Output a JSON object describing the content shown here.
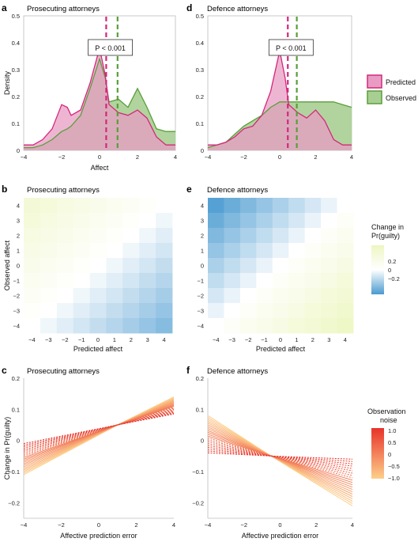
{
  "colors": {
    "predicted": "#d4277b",
    "predicted_fill": "#e89cc4",
    "observed": "#5a9e3a",
    "observed_fill": "#a8cf93",
    "overlap_fill": "#b59b7c",
    "heat_pos": "#edf6c2",
    "heat_zero": "#ffffff",
    "heat_neg": "#4a9ad0",
    "noise_high": "#e8332a",
    "noise_low": "#fdcf8a"
  },
  "panels": {
    "a": {
      "letter": "a",
      "title": "Prosecuting attorneys"
    },
    "b": {
      "letter": "b",
      "title": "Prosecuting attorneys"
    },
    "c": {
      "letter": "c",
      "title": "Prosecuting attorneys"
    },
    "d": {
      "letter": "d",
      "title": "Defence attorneys"
    },
    "e": {
      "letter": "e",
      "title": "Defence attorneys"
    },
    "f": {
      "letter": "f",
      "title": "Defence attorneys"
    }
  },
  "legends": {
    "density": {
      "predicted": "Predicted",
      "observed": "Observed"
    },
    "heatmap": {
      "title_line1": "Change in",
      "title_line2": "Pr(guilty)",
      "ticks": [
        "0.2",
        "0",
        "−0.2"
      ]
    },
    "noise": {
      "title_line1": "Observation",
      "title_line2": "noise",
      "ticks": [
        "1.0",
        "0.5",
        "0",
        "−0.5",
        "−1.0"
      ]
    }
  },
  "chart_data": [
    {
      "panel": "a",
      "type": "area",
      "title": "Prosecuting attorneys",
      "xlabel": "Affect",
      "ylabel": "Density",
      "xlim": [
        -4,
        4
      ],
      "ylim": [
        0,
        0.5
      ],
      "xticks": [
        -4,
        -2,
        0,
        2,
        4
      ],
      "yticks": [
        0,
        0.1,
        0.2,
        0.3,
        0.4,
        0.5
      ],
      "annotation": "P < 0.001",
      "x": [
        -4,
        -3.5,
        -3,
        -2.5,
        -2,
        -1.7,
        -1.5,
        -1,
        -0.5,
        0,
        0.3,
        0.5,
        1,
        1.5,
        2,
        2.5,
        3,
        3.5,
        4
      ],
      "series": [
        {
          "name": "Predicted",
          "values": [
            0.02,
            0.02,
            0.04,
            0.08,
            0.17,
            0.16,
            0.13,
            0.15,
            0.25,
            0.38,
            0.28,
            0.17,
            0.14,
            0.13,
            0.15,
            0.12,
            0.05,
            0.02,
            0.02
          ],
          "mean": 0.35
        },
        {
          "name": "Observed",
          "values": [
            0.01,
            0.01,
            0.02,
            0.04,
            0.07,
            0.08,
            0.09,
            0.13,
            0.23,
            0.34,
            0.27,
            0.18,
            0.19,
            0.16,
            0.23,
            0.16,
            0.08,
            0.07,
            0.07
          ],
          "mean": 0.95
        }
      ]
    },
    {
      "panel": "d",
      "type": "area",
      "title": "Defence attorneys",
      "xlabel": "",
      "ylabel": "",
      "xlim": [
        -4,
        4
      ],
      "ylim": [
        0,
        0.5
      ],
      "xticks": [
        -4,
        -2,
        0,
        2,
        4
      ],
      "yticks": [
        0,
        0.1,
        0.2,
        0.3,
        0.4,
        0.5
      ],
      "annotation": "P < 0.001",
      "x": [
        -4,
        -3.5,
        -3,
        -2.5,
        -2,
        -1.5,
        -1,
        -0.5,
        0,
        0.3,
        0.5,
        1,
        1.5,
        2,
        2.5,
        3,
        3.5,
        4
      ],
      "series": [
        {
          "name": "Predicted",
          "values": [
            0.02,
            0.02,
            0.03,
            0.05,
            0.08,
            0.09,
            0.13,
            0.22,
            0.37,
            0.27,
            0.17,
            0.14,
            0.12,
            0.15,
            0.11,
            0.04,
            0.02,
            0.02
          ],
          "mean": 0.45
        },
        {
          "name": "Observed",
          "values": [
            0.01,
            0.02,
            0.03,
            0.06,
            0.09,
            0.11,
            0.13,
            0.16,
            0.18,
            0.18,
            0.18,
            0.18,
            0.18,
            0.18,
            0.18,
            0.18,
            0.17,
            0.16
          ],
          "mean": 0.95
        }
      ]
    },
    {
      "panel": "b",
      "type": "heatmap",
      "title": "Prosecuting attorneys",
      "xlabel": "Predicted affect",
      "ylabel": "Observed affect",
      "xticks": [
        -4,
        -3,
        -2,
        -1,
        0,
        1,
        2,
        3,
        4
      ],
      "yticks": [
        4,
        3,
        2,
        1,
        0,
        -1,
        -2,
        -3,
        -4
      ],
      "value_range": [
        -0.3,
        0.3
      ],
      "model": {
        "slope_per_error": 0.025,
        "intercept": 0
      }
    },
    {
      "panel": "e",
      "type": "heatmap",
      "title": "Defence attorneys",
      "xlabel": "Predicted affect",
      "ylabel": "",
      "xticks": [
        -4,
        -3,
        -2,
        -1,
        0,
        1,
        2,
        3,
        4
      ],
      "yticks": [
        4,
        3,
        2,
        1,
        0,
        -1,
        -2,
        -3,
        -4
      ],
      "value_range": [
        -0.3,
        0.3
      ],
      "model": {
        "slope_per_error": -0.035,
        "intercept": 0
      }
    },
    {
      "panel": "c",
      "type": "line",
      "title": "Prosecuting attorneys",
      "xlabel": "Affective prediction error",
      "ylabel": "Change in Pr(guilty)",
      "xlim": [
        -4,
        4
      ],
      "ylim": [
        -0.25,
        0.2
      ],
      "xticks": [
        -4,
        -2,
        0,
        2,
        4
      ],
      "yticks": [
        0.2,
        0.1,
        0,
        -0.1,
        -0.2
      ],
      "pivot": [
        1,
        0.05
      ],
      "noise_levels": [
        -1.0,
        1.0
      ],
      "line_count": 21,
      "left_values_range": [
        -0.11,
        -0.01
      ],
      "right_values_range": [
        0.14,
        0.085
      ]
    },
    {
      "panel": "f",
      "type": "line",
      "title": "Defence attorneys",
      "xlabel": "Affective prediction error",
      "ylabel": "",
      "xlim": [
        -4,
        4
      ],
      "ylim": [
        -0.25,
        0.2
      ],
      "xticks": [
        -4,
        -2,
        0,
        2,
        4
      ],
      "yticks": [
        0.2,
        0.1,
        0,
        -0.1,
        -0.2
      ],
      "pivot": [
        -0.5,
        -0.05
      ],
      "noise_levels": [
        -1.0,
        1.0
      ],
      "line_count": 21,
      "left_values_range": [
        0.08,
        -0.04
      ],
      "right_values_range": [
        -0.21,
        -0.06
      ]
    }
  ]
}
